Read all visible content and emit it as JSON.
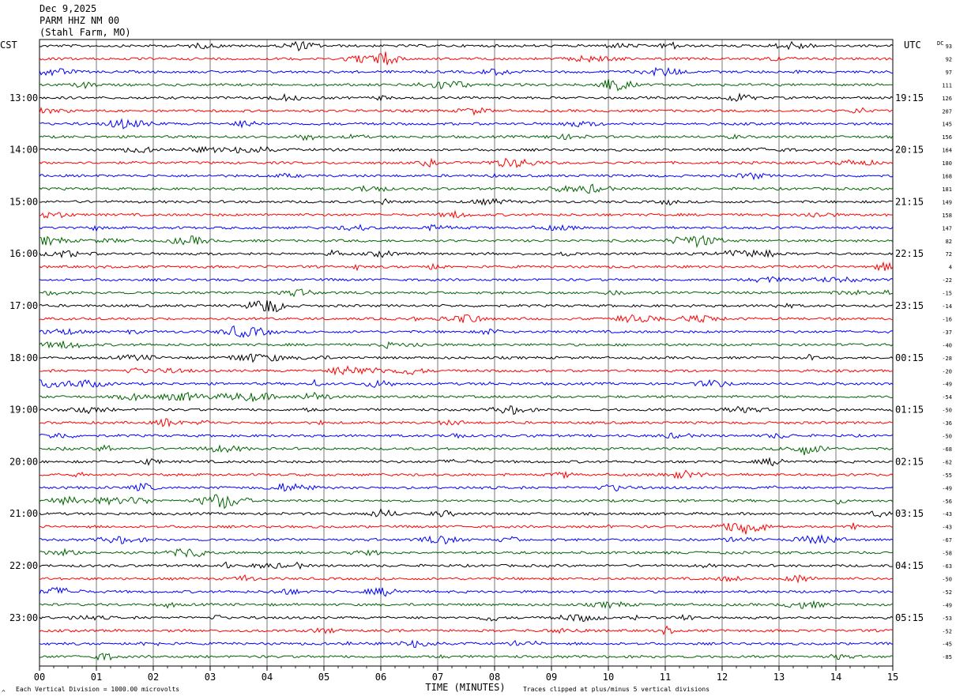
{
  "header": {
    "date": "Dec 9,2025",
    "station": "PARM HHZ NM 00",
    "location": "(Stahl Farm, MO)"
  },
  "left_label": "CST",
  "right_label": "UTC",
  "dc_label": "DC",
  "footer": {
    "scale_note": "Each Vertical Division = 1000.00 microvolts",
    "clip_note": "Traces clipped at plus/minus 5 vertical divisions",
    "corner_mark": "^"
  },
  "colors": {
    "trace_cycle": [
      "#000000",
      "#ff0000",
      "#0000ff",
      "#006400"
    ],
    "grid": "#000000",
    "background": "#ffffff"
  },
  "chart_data": {
    "type": "line",
    "title": "",
    "xlabel": "TIME (MINUTES)",
    "ylabel": "",
    "x_ticks": [
      "00",
      "01",
      "02",
      "03",
      "04",
      "05",
      "06",
      "07",
      "08",
      "09",
      "10",
      "11",
      "12",
      "13",
      "14",
      "15"
    ],
    "xlim": [
      0,
      15
    ],
    "trace_minutes_each": 15,
    "trace_count": 48,
    "left_hour_labels": [
      "13:00",
      "14:00",
      "15:00",
      "16:00",
      "17:00",
      "18:00",
      "19:00",
      "20:00",
      "21:00",
      "22:00",
      "23:00"
    ],
    "right_hour_labels": [
      "19:15",
      "20:15",
      "21:15",
      "22:15",
      "23:15",
      "00:15",
      "01:15",
      "02:15",
      "03:15",
      "04:15",
      "05:15"
    ],
    "hour_label_first_trace": 4,
    "hour_label_every": 4,
    "dc_offsets": [
      93,
      92,
      97,
      111,
      126,
      207,
      145,
      156,
      164,
      180,
      168,
      181,
      149,
      158,
      147,
      82,
      72,
      4,
      -22,
      -15,
      -14,
      -16,
      -37,
      -40,
      -28,
      -20,
      -49,
      -54,
      -50,
      -36,
      -50,
      -68,
      -62,
      -55,
      -49,
      -56,
      -43,
      -43,
      -67,
      -58,
      -63,
      -50,
      -52,
      -49,
      -53,
      -52,
      -45,
      -85
    ],
    "grid": true
  }
}
